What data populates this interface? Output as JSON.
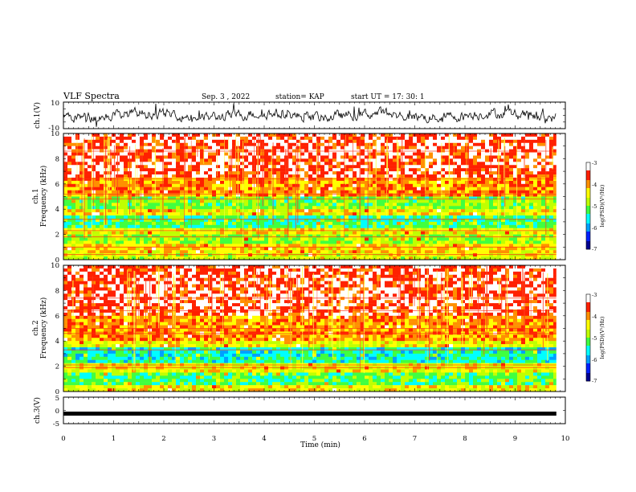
{
  "header": {
    "title": "VLF Spectra",
    "date": "Sep. 3 , 2022",
    "station": "station= KAP",
    "start": "start UT = 17: 30: 1"
  },
  "chart_data": [
    {
      "type": "line",
      "id": "ch1-waveform",
      "ylabel": "ch.1(V)",
      "ylim": [
        -10,
        10
      ],
      "yticks": [
        "10",
        "-10"
      ],
      "xlim": [
        0,
        10
      ],
      "x_end": 9.82,
      "description_level": "noisy trace around 0 V, amplitude about ±4 V",
      "color": "#000000"
    },
    {
      "type": "heatmap",
      "id": "ch1-spectrogram",
      "ylabel": "Frequency (kHz)",
      "channel_label": "ch.1",
      "ylim": [
        0,
        10
      ],
      "yticks": [
        "0",
        "2",
        "4",
        "6",
        "8",
        "10"
      ],
      "xlim": [
        0,
        10
      ],
      "x_end": 9.82,
      "colorbar": {
        "label": "log(PSD)(V²/Hz)",
        "range": [
          -7,
          -3
        ],
        "ticks": [
          "-3",
          "-4",
          "-5",
          "-6",
          "-7"
        ],
        "colors": [
          "#000090",
          "#0020ff",
          "#00a0ff",
          "#00ffff",
          "#40ff40",
          "#c0ff00",
          "#ffff00",
          "#ff9000",
          "#ff2000",
          "#ffffff"
        ]
      },
      "bands_kHz": [
        {
          "from": 0,
          "to": 0.5,
          "level": -4.6
        },
        {
          "from": 0.5,
          "to": 1.2,
          "level": -4.3
        },
        {
          "from": 1.2,
          "to": 2.0,
          "level": -4.9
        },
        {
          "from": 2.0,
          "to": 2.6,
          "level": -4.5
        },
        {
          "from": 2.6,
          "to": 3.5,
          "level": -5.3
        },
        {
          "from": 3.5,
          "to": 4.1,
          "level": -4.4
        },
        {
          "from": 4.1,
          "to": 5.0,
          "level": -5.0
        },
        {
          "from": 5.0,
          "to": 6.5,
          "level": -4.0
        },
        {
          "from": 6.5,
          "to": 10.0,
          "level": -3.5
        }
      ],
      "lines_kHz": [
        0.4,
        1.0,
        1.8,
        2.3,
        3.2,
        4.8,
        5.2,
        6.4,
        8.6
      ]
    },
    {
      "type": "heatmap",
      "id": "ch2-spectrogram",
      "ylabel": "Frequency (kHz)",
      "channel_label": "ch.2",
      "ylim": [
        0,
        10
      ],
      "yticks": [
        "0",
        "2",
        "4",
        "6",
        "8",
        "10"
      ],
      "xlim": [
        0,
        10
      ],
      "x_end": 9.82,
      "colorbar": {
        "label": "log(PSD)(V²/Hz)",
        "range": [
          -7,
          -3
        ],
        "ticks": [
          "-3",
          "-4",
          "-5",
          "-6",
          "-7"
        ],
        "colors": [
          "#000090",
          "#0020ff",
          "#00a0ff",
          "#00ffff",
          "#40ff40",
          "#c0ff00",
          "#ffff00",
          "#ff9000",
          "#ff2000",
          "#ffffff"
        ]
      },
      "bands_kHz": [
        {
          "from": 0,
          "to": 0.6,
          "level": -4.5
        },
        {
          "from": 0.6,
          "to": 1.6,
          "level": -5.2
        },
        {
          "from": 1.6,
          "to": 2.2,
          "level": -4.5
        },
        {
          "from": 2.2,
          "to": 3.4,
          "level": -5.5
        },
        {
          "from": 3.4,
          "to": 4.0,
          "level": -4.5
        },
        {
          "from": 4.0,
          "to": 6.0,
          "level": -4.0
        },
        {
          "from": 6.0,
          "to": 10.0,
          "level": -3.5
        }
      ],
      "lines_kHz": [
        1.9,
        2.1,
        3.3,
        4.6,
        5.0,
        6.4,
        7.4
      ]
    },
    {
      "type": "line",
      "id": "ch3-signal",
      "ylabel": "ch.3(V)",
      "ylim": [
        -5,
        5
      ],
      "yticks": [
        "5",
        "0",
        "-5"
      ],
      "xlim": [
        0,
        10
      ],
      "x_end": 9.82,
      "values": [
        [
          0,
          -1.2
        ],
        [
          9.82,
          -1.2
        ]
      ],
      "color": "#000000"
    }
  ],
  "xaxis": {
    "label": "Time (min)",
    "ticks": [
      "0",
      "1",
      "2",
      "3",
      "4",
      "5",
      "6",
      "7",
      "8",
      "9",
      "10"
    ]
  }
}
